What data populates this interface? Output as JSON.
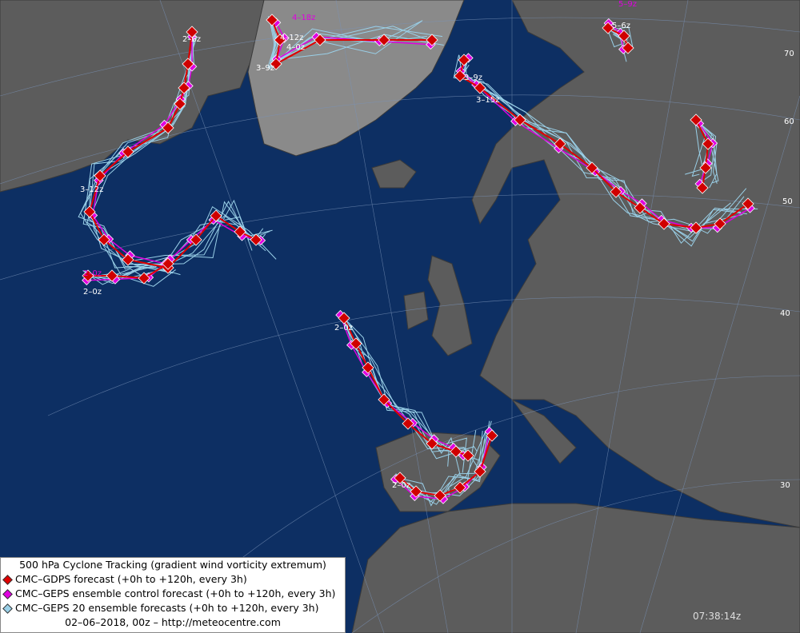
{
  "legend": {
    "title": "500 hPa Cyclone Tracking (gradient wind vorticity extremum)",
    "items": [
      "CMC–GDPS forecast (+0h to +120h, every 3h)",
      "CMC–GEPS ensemble control forecast (+0h to +120h, every 3h)",
      "CMC–GEPS 20 ensemble forecasts (+0h to +120h, every 3h)"
    ],
    "footer": "02–06–2018, 00z – http://meteocentre.com"
  },
  "timestamp": "07:38:14z",
  "track_labels": [
    "2–6z",
    "3–9z",
    "3–12z",
    "2–0z",
    "4–18z",
    "4–12z",
    "4–0z",
    "3–9z",
    "5–9z",
    "5–6z",
    "3–15z",
    "2–0z",
    "2–0z",
    "2–0z"
  ],
  "lat_labels": [
    "70",
    "60",
    "50",
    "40",
    "30"
  ]
}
